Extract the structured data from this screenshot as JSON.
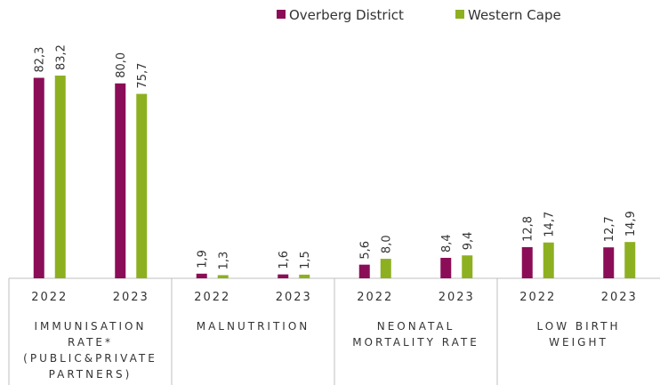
{
  "chart_data": {
    "type": "bar",
    "categories": [
      "2022",
      "2023",
      "2022",
      "2023",
      "2022",
      "2023",
      "2022",
      "2023"
    ],
    "groups": [
      [
        "IMMUNISATION",
        "RATE*",
        "(PUBLIC&PRIVATE",
        "PARTNERS)"
      ],
      [
        "MALNUTRITION"
      ],
      [
        "NEONATAL",
        "MORTALITY RATE"
      ],
      [
        "LOW BIRTH",
        "WEIGHT"
      ]
    ],
    "series": [
      {
        "name": "Overberg District",
        "color": "#8b0d57",
        "values": [
          82.3,
          80.0,
          1.9,
          1.6,
          5.6,
          8.4,
          12.8,
          12.7
        ],
        "value_labels": [
          "82,3",
          "80,0",
          "1,9",
          "1,6",
          "5,6",
          "8,4",
          "12,8",
          "12,7"
        ]
      },
      {
        "name": "Western Cape",
        "color": "#8db021",
        "values": [
          83.2,
          75.7,
          1.3,
          1.5,
          8.0,
          9.4,
          14.7,
          14.9
        ],
        "value_labels": [
          "83,2",
          "75,7",
          "1,3",
          "1,5",
          "8,0",
          "9,4",
          "14,7",
          "14,9"
        ]
      }
    ],
    "legend": "top"
  }
}
